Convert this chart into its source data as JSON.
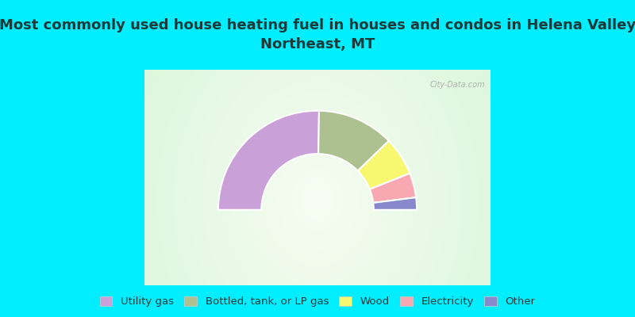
{
  "title": "Most commonly used house heating fuel in houses and condos in Helena Valley\nNortheast, MT",
  "background_color": "#00EEFF",
  "segments": [
    {
      "label": "Utility gas",
      "value": 50.5,
      "color": "#c9a0d8"
    },
    {
      "label": "Bottled, tank, or LP gas",
      "value": 25.0,
      "color": "#adc090"
    },
    {
      "label": "Wood",
      "value": 12.5,
      "color": "#f8f870"
    },
    {
      "label": "Electricity",
      "value": 8.0,
      "color": "#f8a8b0"
    },
    {
      "label": "Other",
      "value": 4.0,
      "color": "#8888cc"
    }
  ],
  "legend_fontsize": 9.5,
  "title_fontsize": 13,
  "title_color": "#1a3a3a",
  "outer_r": 0.92,
  "inner_r": 0.52
}
